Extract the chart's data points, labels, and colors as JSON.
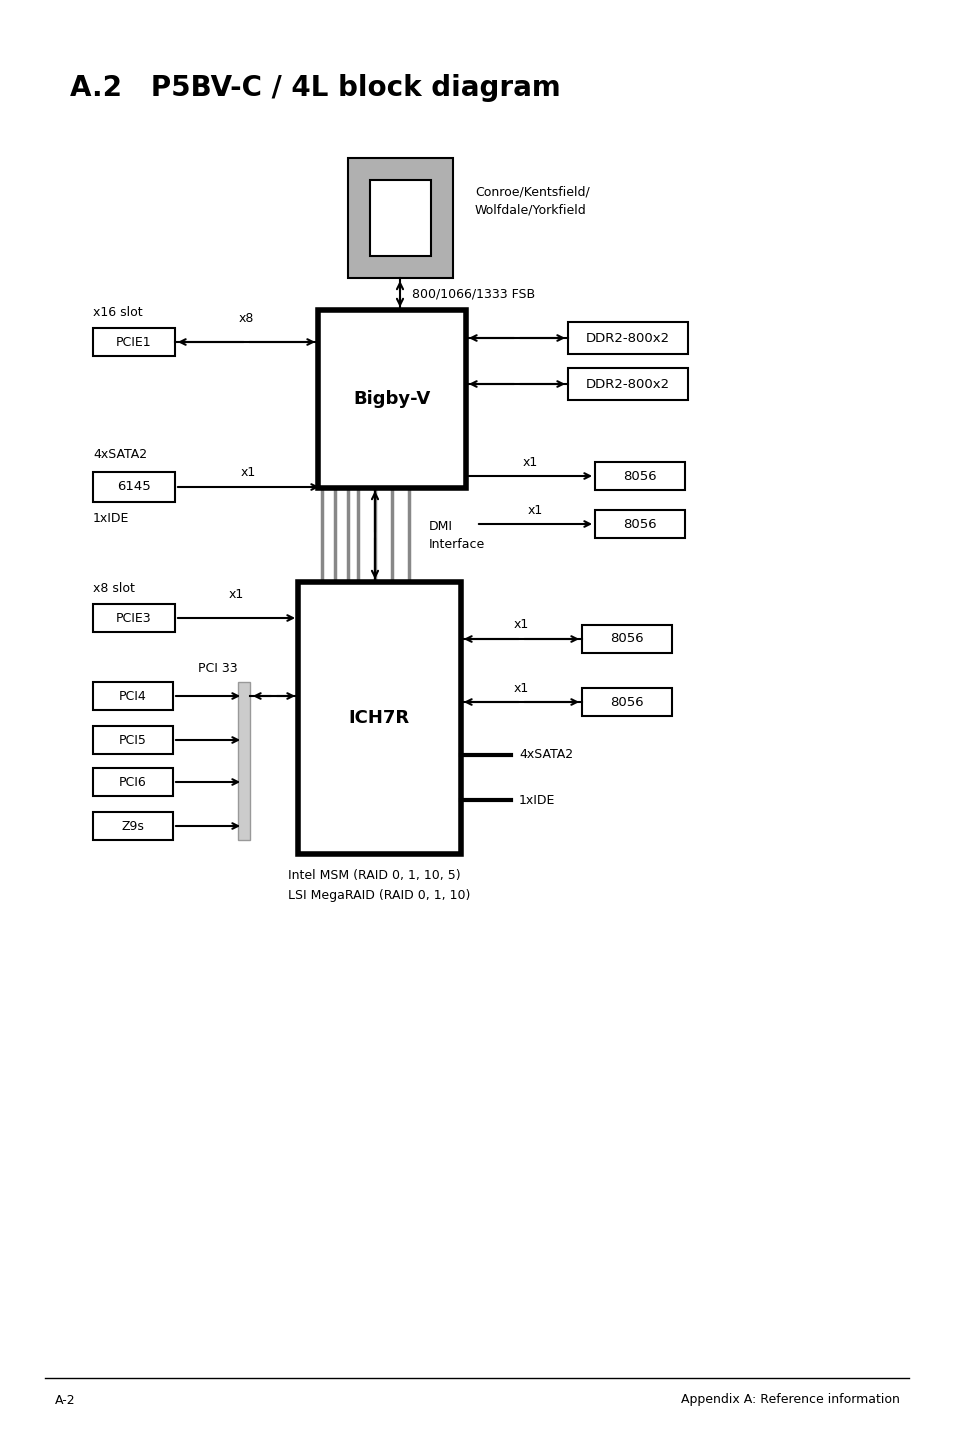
{
  "title": "A.2   P5BV-C / 4L block diagram",
  "fig_width": 9.54,
  "fig_height": 14.38,
  "bg_color": "#ffffff",
  "footer_left": "A-2",
  "footer_right": "Appendix A: Reference information"
}
